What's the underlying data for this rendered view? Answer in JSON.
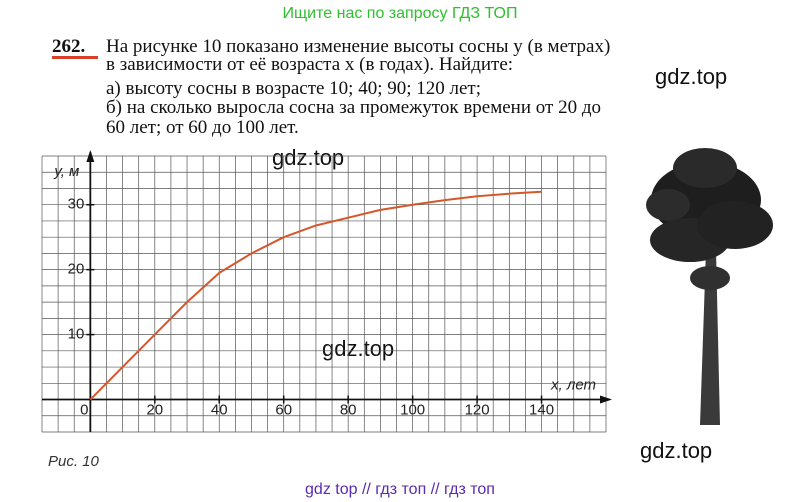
{
  "header": "Ищите нас по запросу ГДЗ ТОП",
  "problem": {
    "number": "262.",
    "lines": [
      "На рисунке 10 показано изменение высоты сосны y (в метрах)",
      "в зависимости от её возраста x (в годах). Найдите:",
      "а) высоту сосны в возрасте 10; 40; 90; 120 лет;",
      "б) на сколько выросла сосна за промежуток времени от 20 до",
      "60 лет; от 60 до 100 лет."
    ]
  },
  "chart_data": {
    "type": "line",
    "x_label": "x, лет",
    "y_label": "y, м",
    "x": [
      0,
      10,
      20,
      30,
      40,
      50,
      60,
      70,
      80,
      90,
      100,
      110,
      120,
      130,
      140
    ],
    "series": [
      {
        "color": "#d4582a",
        "values": [
          0,
          5,
          10,
          15,
          19.5,
          22.5,
          25,
          26.8,
          28,
          29.2,
          30,
          30.7,
          31.3,
          31.7,
          32
        ]
      }
    ],
    "xlim": [
      -15,
      160
    ],
    "ylim": [
      -5,
      37.5
    ],
    "xticks": [
      0,
      20,
      40,
      60,
      80,
      100,
      120,
      140
    ],
    "yticks": [
      10,
      20,
      30
    ],
    "grid": true
  },
  "caption": "Рис. 10",
  "watermarks": [
    "gdz.top",
    "gdz.top",
    "gdz.top",
    "gdz.top"
  ],
  "footer": "gdz top  //  гдз топ  //  гдз топ"
}
